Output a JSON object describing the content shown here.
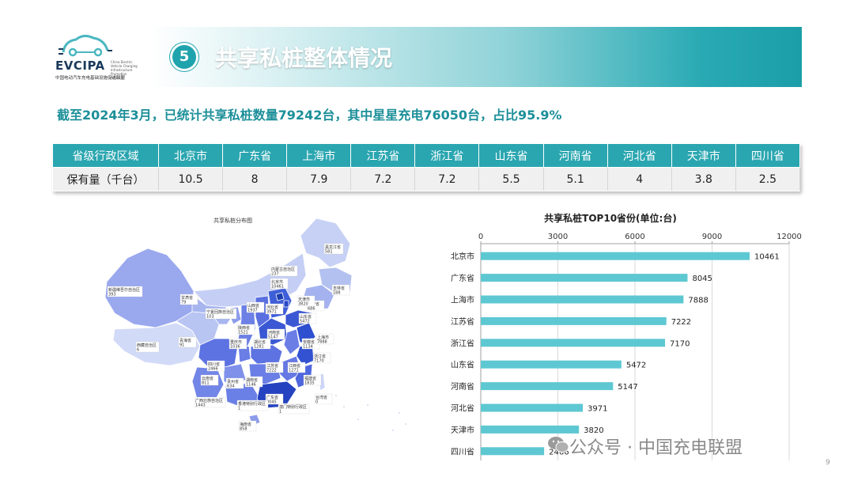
{
  "logo": {
    "name": "EVCIPA",
    "side_text": "China Electric Vehicle Charging Infrastructure Promotion Alliance",
    "cn_name": "中国电动汽车充电基础设施促进联盟"
  },
  "header": {
    "badge": "5",
    "title": "共享私桩整体情况"
  },
  "subtitle": "截至2024年3月，已统计共享私桩数量79242台，其中星星充电76050台，占比95.9%",
  "table": {
    "header_label": "省级行政区域",
    "row_label": "保有量（千台）",
    "columns": [
      "北京市",
      "广东省",
      "上海市",
      "江苏省",
      "浙江省",
      "山东省",
      "河南省",
      "河北省",
      "天津市",
      "四川省"
    ],
    "values": [
      "10.5",
      "8",
      "7.9",
      "7.2",
      "7.2",
      "5.5",
      "5.1",
      "4",
      "3.8",
      "2.5"
    ]
  },
  "map": {
    "title": "共享私桩分布图",
    "labels": [
      {
        "name": "黑龙江省",
        "value": "581"
      },
      {
        "name": "吉林省",
        "value": "188"
      },
      {
        "name": "辽宁省",
        "value": "686"
      },
      {
        "name": "内蒙古自治区",
        "value": "237"
      },
      {
        "name": "新疆维吾尔自治区",
        "value": "393"
      },
      {
        "name": "甘肃省",
        "value": "79"
      },
      {
        "name": "北京市",
        "value": "10461"
      },
      {
        "name": "天津市",
        "value": "3820"
      },
      {
        "name": "河北省",
        "value": "3971"
      },
      {
        "name": "山西省",
        "value": "1937"
      },
      {
        "name": "宁夏回族自治区",
        "value": "103"
      },
      {
        "name": "陕西省",
        "value": "1521"
      },
      {
        "name": "山东省",
        "value": "5472"
      },
      {
        "name": "河南省",
        "value": "5147"
      },
      {
        "name": "青海省",
        "value": "91"
      },
      {
        "name": "西藏自治区",
        "value": "6"
      },
      {
        "name": "重庆市",
        "value": "1036"
      },
      {
        "name": "湖北省",
        "value": "1281"
      },
      {
        "name": "安徽省",
        "value": "1134"
      },
      {
        "name": "上海市",
        "value": "7888"
      },
      {
        "name": "四川省",
        "value": "2466"
      },
      {
        "name": "江苏省",
        "value": "7222"
      },
      {
        "name": "浙江省",
        "value": "7170"
      },
      {
        "name": "江西省",
        "value": "1271"
      },
      {
        "name": "福建省",
        "value": "1835"
      },
      {
        "name": "云南省",
        "value": "811"
      },
      {
        "name": "贵州省",
        "value": "634"
      },
      {
        "name": "湖南省",
        "value": "1146"
      },
      {
        "name": "广东省",
        "value": "8045"
      },
      {
        "name": "广西壮族自治区",
        "value": "1443"
      },
      {
        "name": "香港特别行政区",
        "value": "1"
      },
      {
        "name": "澳门特别行政区",
        "value": "1"
      },
      {
        "name": "台湾省",
        "value": "0"
      },
      {
        "name": "海南省",
        "value": "858"
      }
    ]
  },
  "chart_data": {
    "type": "bar",
    "orientation": "horizontal",
    "title": "共享私桩TOP10省份(单位:台)",
    "categories": [
      "北京市",
      "广东省",
      "上海市",
      "江苏省",
      "浙江省",
      "山东省",
      "河南省",
      "河北省",
      "天津市",
      "四川省"
    ],
    "values": [
      10461,
      8045,
      7888,
      7222,
      7170,
      5472,
      5147,
      3971,
      3820,
      2466
    ],
    "xlim": [
      0,
      12000
    ],
    "xticks": [
      "0",
      "3000",
      "6000",
      "9000",
      "12000"
    ],
    "axis_position": "top",
    "grid": true,
    "bar_color": "#5ec8d2"
  },
  "watermark": "公众号 · 中国充电联盟",
  "page_number": "9"
}
